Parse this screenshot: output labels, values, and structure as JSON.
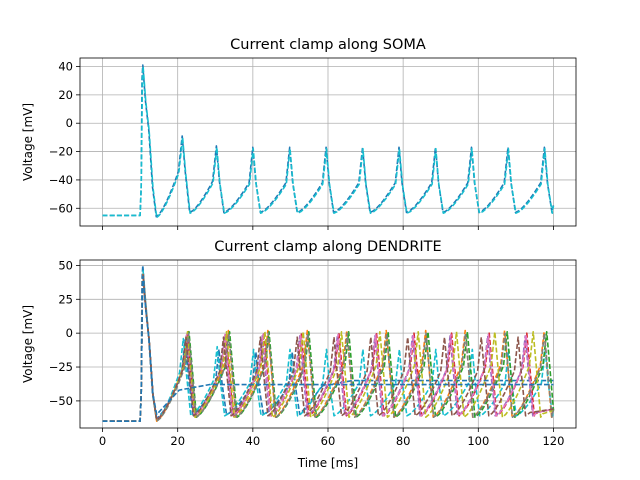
{
  "chart_data": [
    {
      "type": "line",
      "title": "Current clamp along SOMA",
      "xlabel": "",
      "ylabel": "Voltage [mV]",
      "xlim": [
        -6,
        126
      ],
      "ylim": [
        -72.5,
        46
      ],
      "xticks": [
        0,
        20,
        40,
        60,
        80,
        100,
        120
      ],
      "show_xticklabels": false,
      "yticks": [
        -60,
        -40,
        -20,
        0,
        20,
        40
      ],
      "ytick_labels": [
        "−60",
        "−40",
        "−20",
        "0",
        "20",
        "40"
      ],
      "grid": true,
      "rest_mv": -65,
      "stim_onset_ms": 10,
      "t_end_ms": 120,
      "series": [
        {
          "color": "#1f77b4",
          "peak_mv": 41,
          "spikes_ms": [
            10.7,
            21.2,
            30.3,
            40.0,
            49.8,
            59.5,
            69.2,
            78.9,
            88.6,
            98.2,
            107.9,
            117.6
          ],
          "spike_peaks_mv": [
            41,
            -9,
            -16,
            -17,
            -17,
            -17,
            -17,
            -17,
            -17,
            -17,
            -17,
            -17
          ],
          "trough_mv": -61
        },
        {
          "color": "#17becf",
          "peak_mv": 40,
          "spikes_ms": [
            10.8,
            21.3,
            30.4,
            40.1,
            49.9,
            59.6,
            69.3,
            79.0,
            88.7,
            98.3,
            108.0,
            117.7
          ],
          "spike_peaks_mv": [
            40,
            -10,
            -17,
            -18,
            -18,
            -18,
            -18,
            -18,
            -18,
            -18,
            -18,
            -18
          ],
          "trough_mv": -61.5
        }
      ]
    },
    {
      "type": "line",
      "title": "Current clamp along DENDRITE",
      "xlabel": "Time [ms]",
      "ylabel": "Voltage [mV]",
      "xlim": [
        -6,
        126
      ],
      "ylim": [
        -70,
        54
      ],
      "xticks": [
        0,
        20,
        40,
        60,
        80,
        100,
        120
      ],
      "xtick_labels": [
        "0",
        "20",
        "40",
        "60",
        "80",
        "100",
        "120"
      ],
      "show_xticklabels": true,
      "yticks": [
        -50,
        -25,
        0,
        25,
        50
      ],
      "ytick_labels": [
        "−50",
        "−25",
        "0",
        "25",
        "50"
      ],
      "grid": true,
      "rest_mv": -65,
      "stim_onset_ms": 10,
      "t_end_ms": 120,
      "series": [
        {
          "color": "#1f77b4",
          "spikes_ms": [
            10.7,
            22.0,
            31.0,
            40.8,
            50.5
          ],
          "spike_peaks_mv": [
            50,
            -5,
            -12,
            -14,
            -14
          ],
          "trough_mv": -58,
          "settle_mv": -35
        },
        {
          "color": "#17becf",
          "spikes_ms": [
            10.8,
            21.5,
            30.5,
            40.2,
            49.9,
            59.6,
            69.3,
            79.0,
            88.7,
            98.4,
            108.1,
            117.8
          ],
          "spike_peaks_mv": [
            46,
            -4,
            -10,
            -12,
            -12,
            -12,
            -12,
            -12,
            -12,
            -12,
            -12,
            -12
          ],
          "trough_mv": -59
        },
        {
          "color": "#ff7f0e",
          "spikes_ms": [
            10.8,
            22.8,
            33.5,
            44.0,
            54.5,
            65.0,
            75.5,
            86.0,
            96.5,
            107.0,
            117.5
          ],
          "spike_peaks_mv": [
            44,
            2,
            2,
            2,
            2,
            2,
            2,
            2,
            2,
            2,
            1
          ],
          "trough_mv": -60
        },
        {
          "color": "#2ca02c",
          "spikes_ms": [
            10.8,
            23.0,
            33.8,
            44.3,
            54.9,
            65.5,
            76.0,
            86.6,
            97.1,
            107.7,
            118.2
          ],
          "spike_peaks_mv": [
            43,
            1,
            1,
            1,
            1,
            1,
            1,
            1,
            1,
            1,
            1
          ],
          "trough_mv": -60
        },
        {
          "color": "#d62728",
          "spikes_ms": [
            10.8,
            22.5,
            32.8,
            42.9,
            52.9,
            62.9,
            72.9,
            82.9,
            92.9,
            102.9,
            112.9
          ],
          "spike_peaks_mv": [
            43,
            0,
            0,
            0,
            0,
            0,
            0,
            0,
            0,
            0,
            0
          ],
          "trough_mv": -59
        },
        {
          "color": "#9467bd",
          "spikes_ms": [
            10.8,
            22.3,
            32.5,
            42.5,
            52.5,
            62.5,
            72.5,
            82.5,
            92.5,
            102.5,
            112.5
          ],
          "spike_peaks_mv": [
            43,
            -2,
            -2,
            -2,
            -2,
            -2,
            -2,
            -2,
            -2,
            -2,
            -2
          ],
          "trough_mv": -59
        },
        {
          "color": "#e377c2",
          "spikes_ms": [
            10.8,
            22.4,
            32.6,
            42.7,
            52.7,
            62.7,
            72.7,
            82.7,
            92.7,
            102.7,
            112.7
          ],
          "spike_peaks_mv": [
            43,
            -1,
            -1,
            -1,
            -1,
            -1,
            -1,
            -1,
            -1,
            -1,
            -1
          ],
          "trough_mv": -59
        },
        {
          "color": "#bcbd22",
          "spikes_ms": [
            10.8,
            22.6,
            33.0,
            43.2,
            53.4,
            63.6,
            73.8,
            84.0,
            94.2,
            104.4,
            114.6
          ],
          "spike_peaks_mv": [
            43,
            1,
            1,
            1,
            1,
            1,
            1,
            1,
            1,
            1,
            1
          ],
          "trough_mv": -60
        },
        {
          "color": "#7f7f7f",
          "spikes_ms": [
            10.8,
            22.9,
            33.6,
            44.1,
            54.6,
            65.1,
            75.6,
            86.1,
            96.6,
            107.1,
            117.6
          ],
          "spike_peaks_mv": [
            43,
            0,
            0,
            0,
            0,
            0,
            0,
            0,
            0,
            0,
            0
          ],
          "trough_mv": -60
        },
        {
          "color": "#8c564b",
          "spikes_ms": [
            10.8,
            22.2,
            32.2,
            42.0,
            51.8,
            61.6,
            71.4,
            81.2,
            91.0,
            100.8,
            110.6
          ],
          "spike_peaks_mv": [
            43,
            -3,
            -3,
            -3,
            -3,
            -3,
            -3,
            -3,
            -3,
            -3,
            -3
          ],
          "trough_mv": -59
        },
        {
          "color": "#1f77b4",
          "spikes_ms": [
            10.8
          ],
          "spike_peaks_mv": [
            42
          ],
          "trough_mv": -55,
          "settle_mv": -38
        }
      ]
    }
  ]
}
